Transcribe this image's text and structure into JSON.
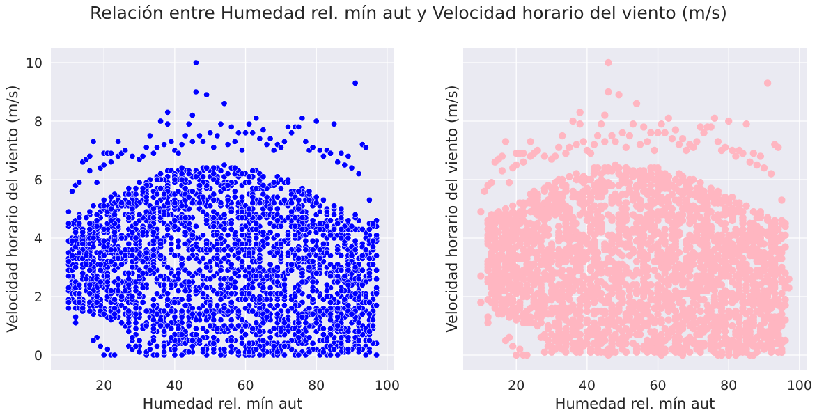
{
  "figure": {
    "title": "Relación entre Humedad rel. mín aut y Velocidad horario del viento (m/s)"
  },
  "colors": {
    "panel_background": "#eaeaf2",
    "grid": "#ffffff",
    "left_marker": "#0000ff",
    "left_marker_edge": "#ffffff",
    "right_marker": "#ffb6c1"
  },
  "chart_data": [
    {
      "type": "scatter",
      "xlabel": "Humedad rel. mín aut",
      "ylabel": "Velocidad horario del viento (m/s)",
      "xlim": [
        5,
        102
      ],
      "ylim": [
        -0.5,
        10.5
      ],
      "xticks": [
        20,
        40,
        60,
        80,
        100
      ],
      "yticks": [
        0,
        2,
        4,
        6,
        8,
        10
      ],
      "show_yticklabels": true,
      "grid": true,
      "marker_color": "#0000ff",
      "marker_edge": "#ffffff",
      "dense_region": {
        "x_range": [
          10,
          97
        ],
        "y_range": [
          0,
          6.9
        ],
        "note": ""
      },
      "points": [
        [
          10,
          1.8
        ],
        [
          10,
          2.7
        ],
        [
          10,
          4.9
        ],
        [
          11,
          5.6
        ],
        [
          12,
          5.8
        ],
        [
          13,
          5.9
        ],
        [
          12,
          1.1
        ],
        [
          12,
          1.3
        ],
        [
          13,
          2.1
        ],
        [
          14,
          6.6
        ],
        [
          15,
          6.7
        ],
        [
          16,
          6.3
        ],
        [
          16,
          6.8
        ],
        [
          17,
          7.3
        ],
        [
          18,
          5.9
        ],
        [
          19,
          6.4
        ],
        [
          20,
          6.9
        ],
        [
          20,
          6.5
        ],
        [
          21,
          6.9
        ],
        [
          22,
          6.9
        ],
        [
          22,
          6.6
        ],
        [
          24,
          7.3
        ],
        [
          24,
          6.8
        ],
        [
          25,
          6.9
        ],
        [
          26,
          7.0
        ],
        [
          28,
          6.8
        ],
        [
          30,
          6.7
        ],
        [
          31,
          6.8
        ],
        [
          32,
          7.1
        ],
        [
          33,
          7.5
        ],
        [
          34,
          6.9
        ],
        [
          35,
          7.1
        ],
        [
          36,
          8.0
        ],
        [
          37,
          7.2
        ],
        [
          38,
          8.3
        ],
        [
          38,
          7.9
        ],
        [
          39,
          7.3
        ],
        [
          40,
          7.0
        ],
        [
          41,
          6.9
        ],
        [
          42,
          7.2
        ],
        [
          43,
          7.5
        ],
        [
          44,
          7.9
        ],
        [
          45,
          8.2
        ],
        [
          45,
          7.3
        ],
        [
          46,
          10.0
        ],
        [
          46,
          9.0
        ],
        [
          47,
          7.5
        ],
        [
          48,
          7.3
        ],
        [
          49,
          8.9
        ],
        [
          50,
          7.6
        ],
        [
          51,
          7.1
        ],
        [
          52,
          7.5
        ],
        [
          53,
          7.9
        ],
        [
          54,
          8.6
        ],
        [
          55,
          7.2
        ],
        [
          56,
          7.8
        ],
        [
          57,
          7.3
        ],
        [
          58,
          7.6
        ],
        [
          59,
          7.0
        ],
        [
          60,
          7.6
        ],
        [
          61,
          7.9
        ],
        [
          62,
          7.6
        ],
        [
          63,
          8.1
        ],
        [
          64,
          7.4
        ],
        [
          65,
          7.7
        ],
        [
          66,
          7.2
        ],
        [
          67,
          7.4
        ],
        [
          68,
          7.0
        ],
        [
          69,
          7.2
        ],
        [
          70,
          7.1
        ],
        [
          71,
          7.3
        ],
        [
          72,
          7.8
        ],
        [
          73,
          7.6
        ],
        [
          74,
          7.8
        ],
        [
          75,
          7.8
        ],
        [
          76,
          8.1
        ],
        [
          77,
          7.3
        ],
        [
          78,
          7.0
        ],
        [
          79,
          7.1
        ],
        [
          80,
          8.0
        ],
        [
          81,
          7.0
        ],
        [
          82,
          6.8
        ],
        [
          83,
          7.0
        ],
        [
          84,
          6.9
        ],
        [
          85,
          7.9
        ],
        [
          86,
          6.6
        ],
        [
          87,
          6.9
        ],
        [
          88,
          6.5
        ],
        [
          89,
          6.8
        ],
        [
          90,
          6.4
        ],
        [
          91,
          9.3
        ],
        [
          92,
          6.2
        ],
        [
          93,
          7.2
        ],
        [
          94,
          7.1
        ],
        [
          95,
          5.3
        ],
        [
          96,
          4.5
        ],
        [
          97,
          2.6
        ],
        [
          97,
          2.3
        ],
        [
          96,
          1.2
        ],
        [
          95,
          0.5
        ],
        [
          18,
          0.6
        ],
        [
          19,
          0.3
        ],
        [
          20,
          0.0
        ],
        [
          21,
          0.2
        ],
        [
          22,
          0.0
        ],
        [
          23,
          0.0
        ],
        [
          17,
          0.5
        ]
      ]
    },
    {
      "type": "scatter",
      "xlabel": "Humedad rel. mín aut",
      "ylabel": "Velocidad horario del viento (m/s)",
      "xlim": [
        5,
        102
      ],
      "ylim": [
        -0.5,
        10.5
      ],
      "xticks": [
        20,
        40,
        60,
        80,
        100
      ],
      "yticks": [
        0,
        2,
        4,
        6,
        8,
        10
      ],
      "show_yticklabels": false,
      "grid": true,
      "marker_color": "#ffb6c1",
      "dense_region": {
        "x_range": [
          12,
          96
        ],
        "y_range": [
          0,
          6.5
        ],
        "note": ""
      },
      "points": [
        [
          10,
          1.8
        ],
        [
          10,
          2.7
        ],
        [
          10,
          4.9
        ],
        [
          11,
          5.6
        ],
        [
          12,
          5.8
        ],
        [
          13,
          5.9
        ],
        [
          12,
          1.1
        ],
        [
          12,
          1.3
        ],
        [
          13,
          2.1
        ],
        [
          14,
          6.6
        ],
        [
          15,
          6.7
        ],
        [
          16,
          6.3
        ],
        [
          16,
          6.8
        ],
        [
          17,
          7.3
        ],
        [
          18,
          5.9
        ],
        [
          19,
          6.4
        ],
        [
          20,
          6.9
        ],
        [
          20,
          6.5
        ],
        [
          21,
          6.9
        ],
        [
          22,
          6.9
        ],
        [
          22,
          6.6
        ],
        [
          24,
          7.3
        ],
        [
          24,
          6.8
        ],
        [
          25,
          6.9
        ],
        [
          26,
          7.0
        ],
        [
          28,
          6.8
        ],
        [
          30,
          6.7
        ],
        [
          31,
          6.8
        ],
        [
          32,
          7.1
        ],
        [
          33,
          7.5
        ],
        [
          34,
          6.9
        ],
        [
          35,
          7.1
        ],
        [
          36,
          8.0
        ],
        [
          37,
          7.2
        ],
        [
          38,
          8.3
        ],
        [
          38,
          7.9
        ],
        [
          39,
          7.3
        ],
        [
          40,
          7.0
        ],
        [
          41,
          6.9
        ],
        [
          42,
          7.2
        ],
        [
          43,
          7.5
        ],
        [
          44,
          7.9
        ],
        [
          45,
          8.2
        ],
        [
          45,
          7.3
        ],
        [
          46,
          10.0
        ],
        [
          46,
          9.0
        ],
        [
          47,
          7.5
        ],
        [
          48,
          7.3
        ],
        [
          49,
          8.9
        ],
        [
          50,
          7.6
        ],
        [
          51,
          7.1
        ],
        [
          52,
          7.5
        ],
        [
          53,
          7.9
        ],
        [
          54,
          8.6
        ],
        [
          55,
          7.2
        ],
        [
          56,
          7.8
        ],
        [
          57,
          7.3
        ],
        [
          58,
          7.6
        ],
        [
          59,
          7.0
        ],
        [
          60,
          7.6
        ],
        [
          61,
          7.9
        ],
        [
          62,
          7.6
        ],
        [
          63,
          8.1
        ],
        [
          64,
          7.4
        ],
        [
          65,
          7.7
        ],
        [
          66,
          7.2
        ],
        [
          67,
          7.4
        ],
        [
          68,
          7.0
        ],
        [
          69,
          7.2
        ],
        [
          70,
          7.1
        ],
        [
          71,
          7.3
        ],
        [
          72,
          7.8
        ],
        [
          73,
          7.6
        ],
        [
          74,
          7.8
        ],
        [
          75,
          7.8
        ],
        [
          76,
          8.1
        ],
        [
          77,
          7.3
        ],
        [
          78,
          7.0
        ],
        [
          79,
          7.1
        ],
        [
          80,
          8.0
        ],
        [
          81,
          7.0
        ],
        [
          82,
          6.8
        ],
        [
          83,
          7.0
        ],
        [
          84,
          6.9
        ],
        [
          85,
          7.9
        ],
        [
          86,
          6.6
        ],
        [
          87,
          6.9
        ],
        [
          88,
          6.5
        ],
        [
          89,
          6.8
        ],
        [
          90,
          6.4
        ],
        [
          91,
          9.3
        ],
        [
          92,
          6.2
        ],
        [
          93,
          7.2
        ],
        [
          94,
          7.1
        ],
        [
          95,
          5.3
        ],
        [
          96,
          4.5
        ],
        [
          97,
          2.6
        ],
        [
          97,
          2.3
        ],
        [
          96,
          1.2
        ],
        [
          95,
          0.5
        ],
        [
          18,
          0.6
        ],
        [
          19,
          0.3
        ],
        [
          20,
          0.0
        ],
        [
          21,
          0.2
        ],
        [
          22,
          0.0
        ],
        [
          23,
          0.0
        ],
        [
          17,
          0.5
        ]
      ]
    }
  ]
}
